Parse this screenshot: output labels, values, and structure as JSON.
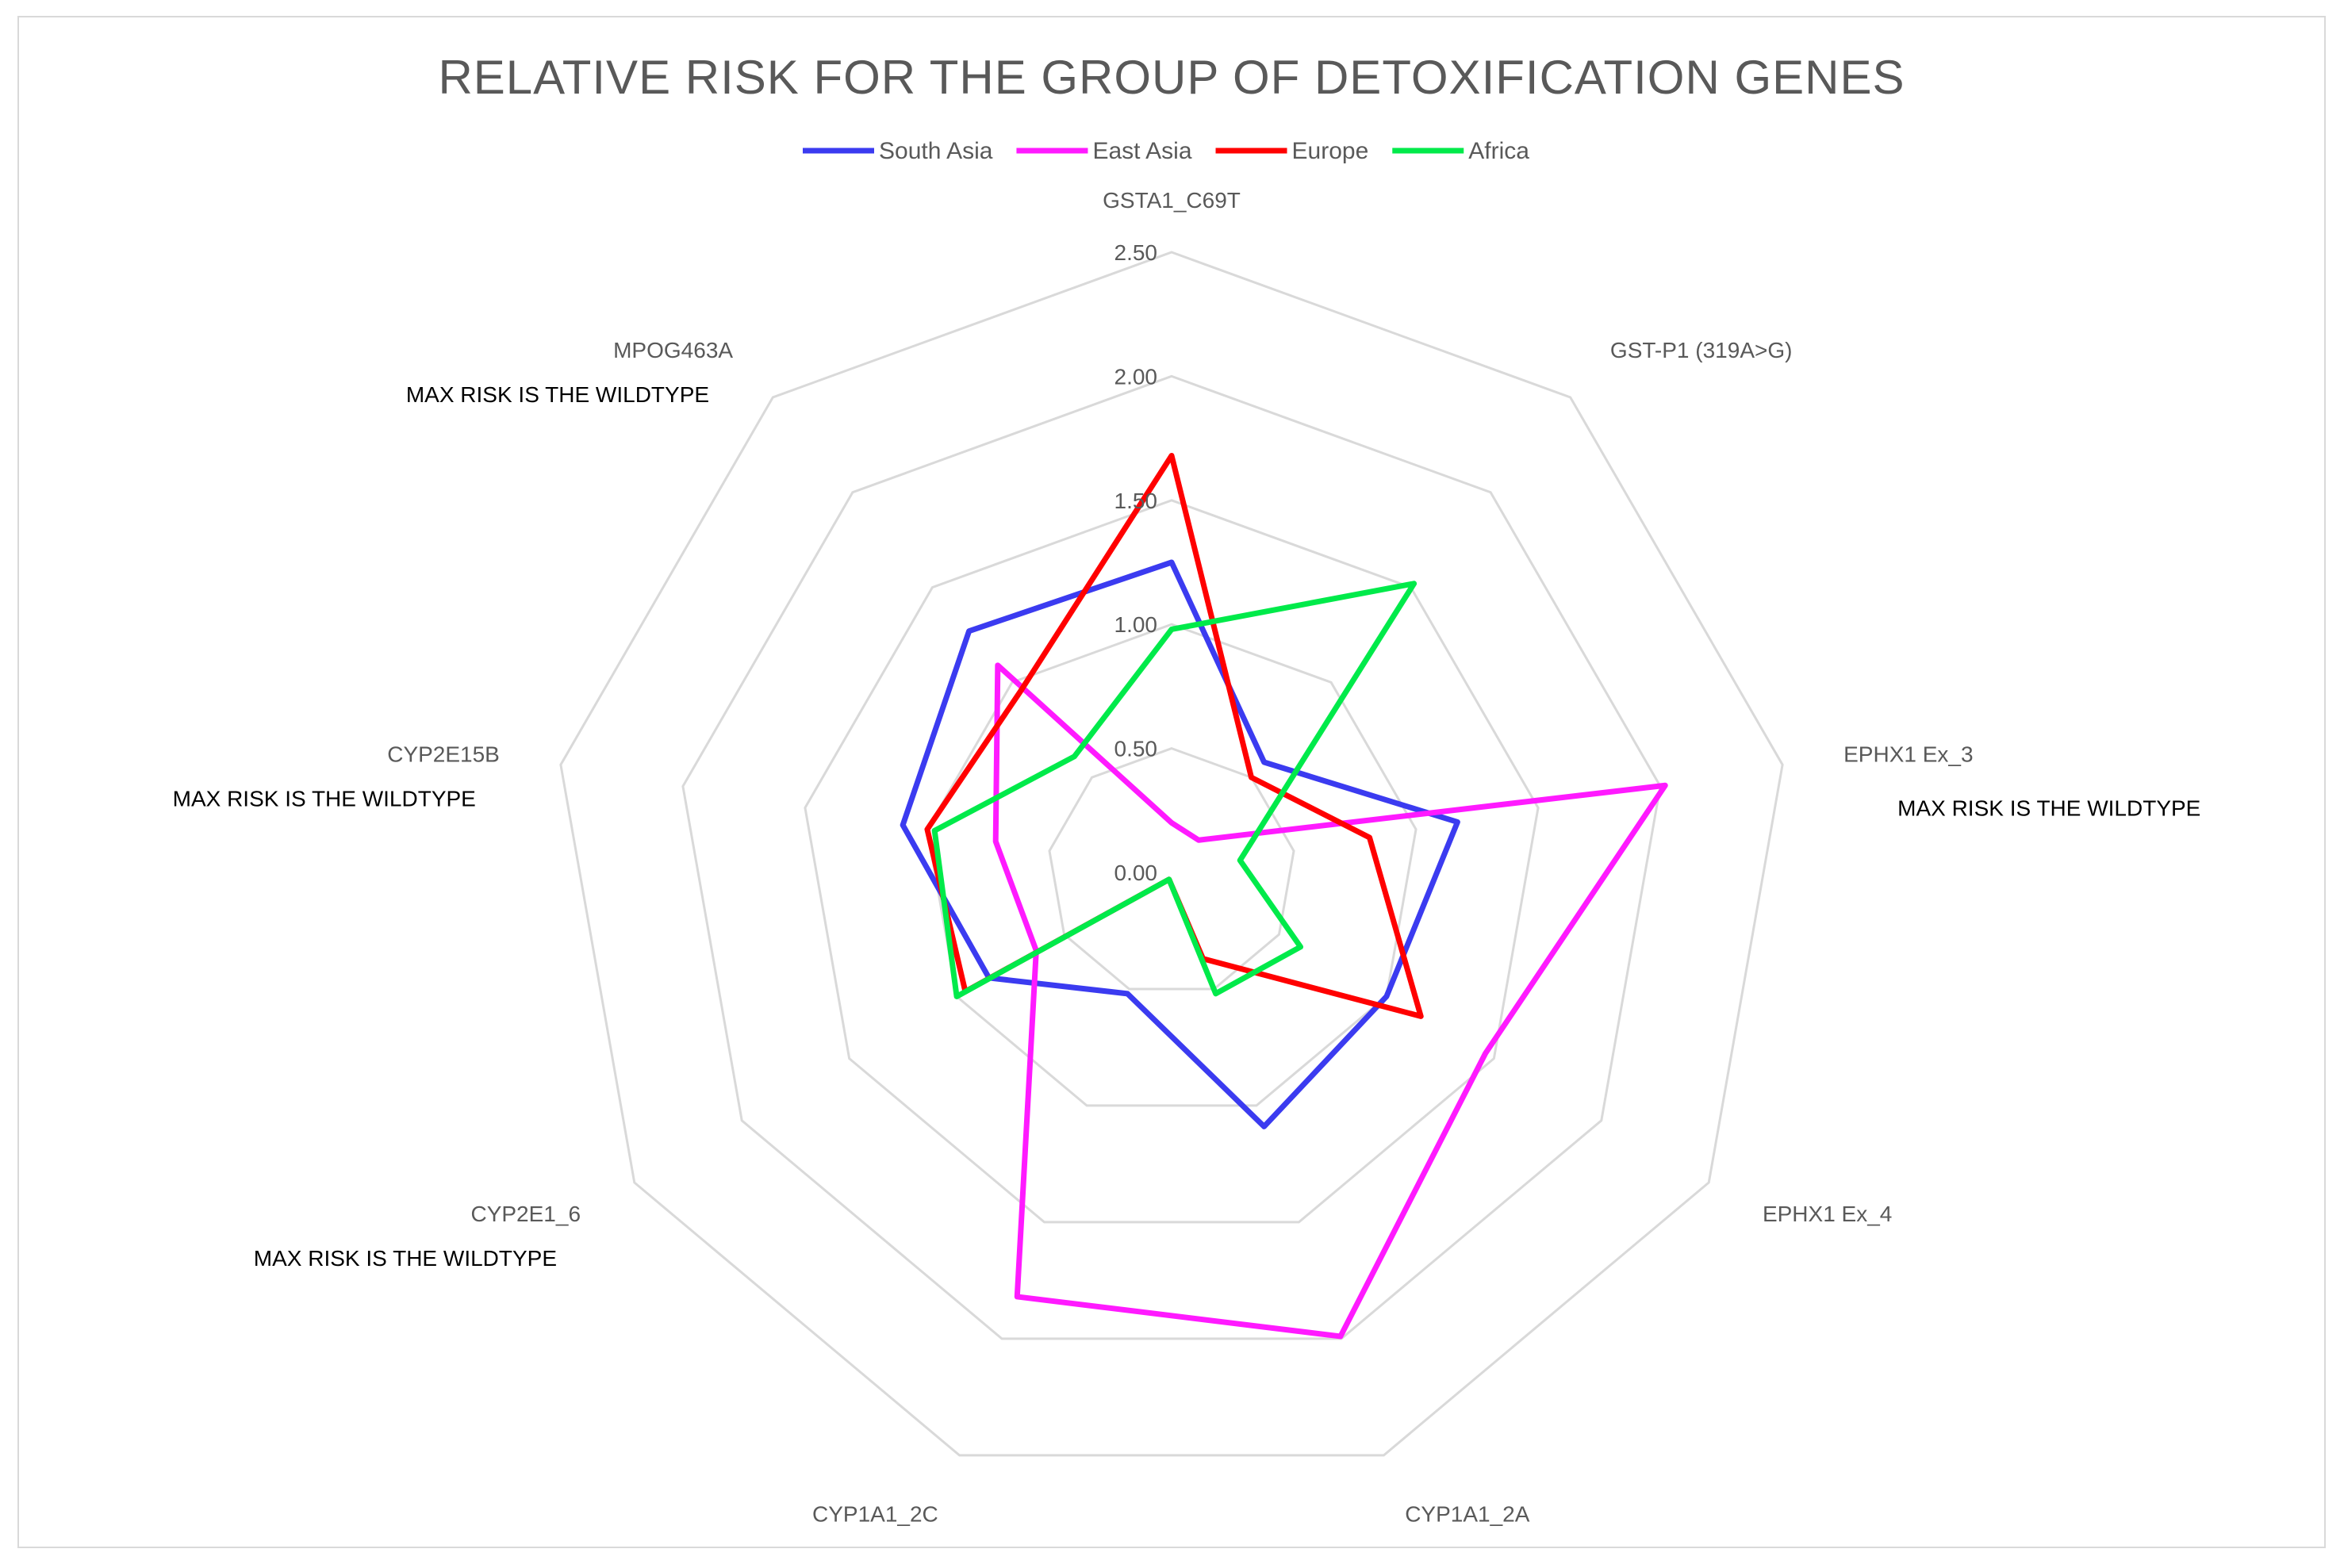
{
  "chart_data": {
    "type": "radar",
    "title": "RELATIVE RISK FOR THE GROUP OF DETOXIFICATION GENES",
    "categories": [
      "GSTA1_C69T",
      "GST-P1 (319A>G)",
      "EPHX1 Ex_3",
      "EPHX1 Ex_4",
      "CYP1A1_2A",
      "CYP1A1_2C",
      "CYP2E1_6",
      "CYP2E15B",
      "MPOG463A"
    ],
    "rlim": [
      0,
      2.5
    ],
    "ticks": [
      "0.00",
      "0.50",
      "1.00",
      "1.50",
      "2.00",
      "2.50"
    ],
    "tick_values": [
      0,
      0.5,
      1,
      1.5,
      2,
      2.5
    ],
    "legend_position": "top",
    "series": [
      {
        "name": "South Asia",
        "color": "#3b3bf0",
        "values": [
          1.25,
          0.58,
          1.17,
          1.0,
          1.09,
          0.52,
          0.85,
          1.1,
          1.27
        ]
      },
      {
        "name": "East Asia",
        "color": "#ff1aff",
        "values": [
          0.2,
          0.17,
          2.02,
          1.46,
          1.99,
          1.82,
          0.63,
          0.72,
          1.09
        ]
      },
      {
        "name": "Europe",
        "color": "#ff0000",
        "values": [
          1.68,
          0.5,
          0.81,
          1.16,
          0.37,
          0.03,
          0.96,
          1.0,
          0.95
        ]
      },
      {
        "name": "Africa",
        "color": "#00ea4a",
        "values": [
          0.98,
          1.52,
          0.28,
          0.6,
          0.52,
          0.03,
          1.0,
          0.97,
          0.61
        ]
      }
    ],
    "annotations": [
      {
        "category": "MPOG463A",
        "text": "MAX RISK IS THE WILDTYPE"
      },
      {
        "category": "EPHX1 Ex_3",
        "text": "MAX RISK IS THE WILDTYPE"
      },
      {
        "category": "CYP2E15B",
        "text": "MAX RISK IS THE WILDTYPE"
      },
      {
        "category": "CYP2E1_6",
        "text": "MAX RISK IS THE WILDTYPE"
      }
    ],
    "grid": true
  },
  "colors": {
    "grid": "#d9d9d9",
    "text": "#595959",
    "note": "#000000"
  }
}
